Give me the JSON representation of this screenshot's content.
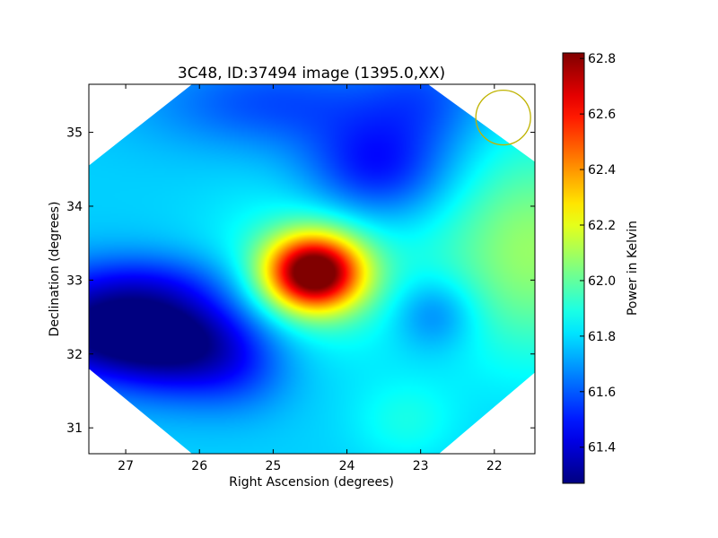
{
  "chart_data": {
    "type": "heatmap",
    "title": "3C48, ID:37494 image (1395.0,XX)",
    "xlabel": "Right Ascension (degrees)",
    "ylabel": "Declination (degrees)",
    "xlim": [
      27.5,
      21.45
    ],
    "ylim": [
      30.65,
      35.65
    ],
    "x_ticks": [
      27,
      26,
      25,
      24,
      23,
      22
    ],
    "y_ticks": [
      31,
      32,
      33,
      34,
      35
    ],
    "colorbar": {
      "label": "Power in Kelvin",
      "range": [
        61.27,
        62.82
      ],
      "ticks": [
        61.4,
        61.6,
        61.8,
        62.0,
        62.2,
        62.4,
        62.6,
        62.8
      ],
      "colormap": "jet"
    },
    "background_level": 61.78,
    "field_footprint": [
      [
        26.1,
        35.65
      ],
      [
        22.9,
        35.65
      ],
      [
        21.45,
        34.6
      ],
      [
        21.45,
        31.75
      ],
      [
        22.75,
        30.65
      ],
      [
        26.1,
        30.65
      ],
      [
        27.5,
        31.8
      ],
      [
        27.5,
        34.55
      ]
    ],
    "features": [
      {
        "ra": 24.45,
        "dec": 33.1,
        "sigma_ra": 0.45,
        "sigma_dec": 0.35,
        "delta": 1.05
      },
      {
        "ra": 24.45,
        "dec": 33.1,
        "sigma_ra": 0.9,
        "sigma_dec": 0.75,
        "delta": 0.2
      },
      {
        "ra": 27.3,
        "dec": 32.35,
        "sigma_ra": 1.0,
        "sigma_dec": 0.5,
        "delta": -0.5
      },
      {
        "ra": 26.1,
        "dec": 32.1,
        "sigma_ra": 0.8,
        "sigma_dec": 0.5,
        "delta": -0.35
      },
      {
        "ra": 26.6,
        "dec": 33.0,
        "sigma_ra": 0.9,
        "sigma_dec": 0.3,
        "delta": -0.12
      },
      {
        "ra": 25.0,
        "dec": 35.4,
        "sigma_ra": 1.2,
        "sigma_dec": 0.45,
        "delta": -0.2
      },
      {
        "ra": 23.6,
        "dec": 34.5,
        "sigma_ra": 0.7,
        "sigma_dec": 0.5,
        "delta": -0.3
      },
      {
        "ra": 22.9,
        "dec": 35.5,
        "sigma_ra": 0.6,
        "sigma_dec": 0.5,
        "delta": -0.15
      },
      {
        "ra": 22.8,
        "dec": 32.55,
        "sigma_ra": 0.4,
        "sigma_dec": 0.35,
        "delta": -0.18
      },
      {
        "ra": 21.5,
        "dec": 33.4,
        "sigma_ra": 0.9,
        "sigma_dec": 1.0,
        "delta": 0.3
      },
      {
        "ra": 23.2,
        "dec": 31.1,
        "sigma_ra": 0.5,
        "sigma_dec": 0.4,
        "delta": 0.1
      },
      {
        "ra": 25.4,
        "dec": 31.7,
        "sigma_ra": 0.5,
        "sigma_dec": 0.4,
        "delta": -0.08
      }
    ],
    "beam": {
      "ra": 21.88,
      "dec": 35.2,
      "radius_deg": 0.37,
      "color": "#bfb300"
    }
  }
}
